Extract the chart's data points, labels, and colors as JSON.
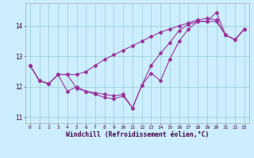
{
  "xlabel": "Windchill (Refroidissement éolien,°C)",
  "bg_color": "#cceeff",
  "line_color": "#993399",
  "grid_color": "#99cccc",
  "hours": [
    0,
    1,
    2,
    3,
    4,
    5,
    6,
    7,
    8,
    9,
    10,
    11,
    12,
    13,
    14,
    15,
    16,
    17,
    18,
    19,
    20,
    21,
    22,
    23
  ],
  "line1": [
    12.7,
    12.2,
    12.1,
    12.4,
    11.85,
    12.0,
    11.85,
    11.75,
    11.65,
    11.6,
    11.7,
    11.3,
    12.05,
    12.45,
    12.2,
    12.9,
    13.5,
    13.9,
    14.15,
    14.15,
    14.45,
    13.7,
    13.55,
    13.9
  ],
  "line2": [
    12.7,
    12.2,
    12.1,
    12.4,
    12.4,
    11.95,
    11.85,
    11.8,
    11.75,
    11.7,
    11.75,
    11.3,
    12.05,
    12.7,
    13.1,
    13.45,
    13.85,
    14.05,
    14.15,
    14.15,
    14.15,
    13.7,
    13.55,
    13.9
  ],
  "line3": [
    12.7,
    12.2,
    12.1,
    12.4,
    12.4,
    12.4,
    12.5,
    12.7,
    12.9,
    13.05,
    13.2,
    13.35,
    13.5,
    13.65,
    13.8,
    13.9,
    14.0,
    14.1,
    14.2,
    14.25,
    14.2,
    13.7,
    13.55,
    13.9
  ],
  "ylim": [
    10.8,
    14.75
  ],
  "yticks": [
    11,
    12,
    13,
    14
  ],
  "xlim": [
    -0.5,
    23.5
  ],
  "xtick_fontsize": 4.5,
  "ytick_fontsize": 5.5,
  "xlabel_fontsize": 5.8
}
